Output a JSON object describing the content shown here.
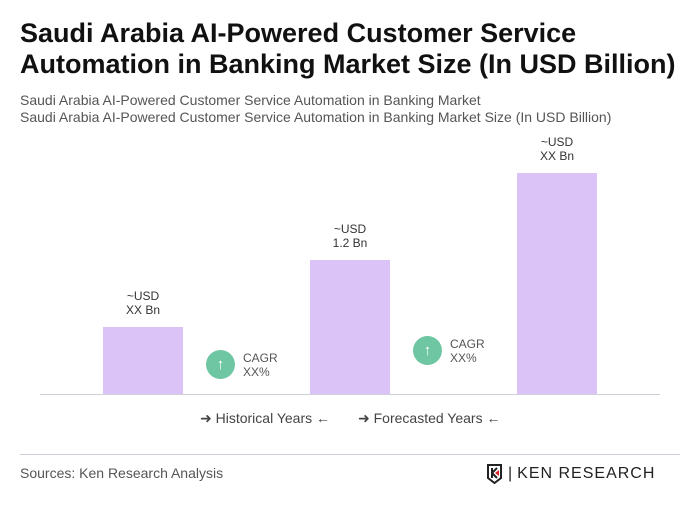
{
  "title": "Saudi Arabia AI-Powered Customer Service Automation in Banking Market Size (In USD Billion)",
  "subtitle1": "Saudi Arabia AI-Powered Customer Service Automation in Banking Market",
  "subtitle2": "Saudi Arabia AI-Powered Customer Service Automation in Banking Market Size (In USD Billion)",
  "chart_data": {
    "type": "bar",
    "values": [
      0.6,
      1.2,
      1.97
    ],
    "data_labels": [
      {
        "l1": "~USD",
        "l2": "XX Bn"
      },
      {
        "l1": "~USD",
        "l2": "1.2 Bn"
      },
      {
        "l1": "~USD",
        "l2": "XX Bn"
      }
    ],
    "bar_color": "#dcc3f7",
    "cagr": [
      {
        "label": "CAGR",
        "value": "XX%"
      },
      {
        "label": "CAGR",
        "value": "XX%"
      }
    ],
    "cagr_color": "#6fc6a3",
    "legend": [
      "Historical Years",
      "Forecasted Years"
    ]
  },
  "footer": {
    "sources": "Sources: Ken Research Analysis",
    "logo": "KEN RESEARCH"
  }
}
